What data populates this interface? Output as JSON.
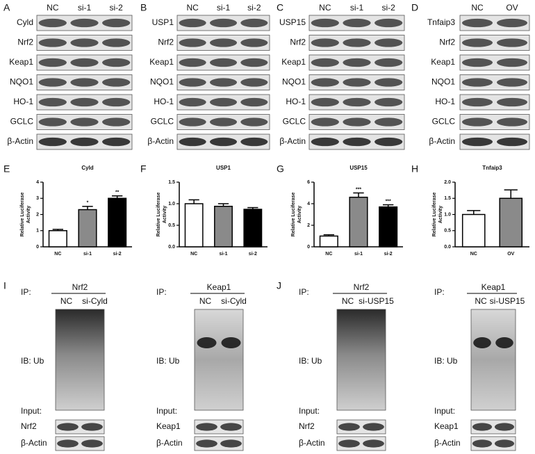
{
  "blots": [
    {
      "letter": "A",
      "columns": [
        "NC",
        "si-1",
        "si-2"
      ],
      "rows": [
        "Cyld",
        "Nrf2",
        "Keap1",
        "NQO1",
        "HO-1",
        "GCLC",
        "β-Actin"
      ]
    },
    {
      "letter": "B",
      "columns": [
        "NC",
        "si-1",
        "si-2"
      ],
      "rows": [
        "USP1",
        "Nrf2",
        "Keap1",
        "NQO1",
        "HO-1",
        "GCLC",
        "β-Actin"
      ]
    },
    {
      "letter": "C",
      "columns": [
        "NC",
        "si-1",
        "si-2"
      ],
      "rows": [
        "USP15",
        "Nrf2",
        "Keap1",
        "NQO1",
        "HO-1",
        "GCLC",
        "β-Actin"
      ]
    },
    {
      "letter": "D",
      "columns": [
        "NC",
        "OV"
      ],
      "rows": [
        "Tnfaip3",
        "Nrf2",
        "Keap1",
        "NQO1",
        "HO-1",
        "GCLC",
        "β-Actin"
      ]
    }
  ],
  "chart_data": [
    {
      "type": "bar",
      "letter": "E",
      "title": "Cyld",
      "ylabel": [
        "Relative Luciferase",
        "Activity"
      ],
      "categories": [
        "NC",
        "si-1",
        "si-2"
      ],
      "values": [
        1.0,
        2.3,
        3.0
      ],
      "errors": [
        0.08,
        0.2,
        0.15
      ],
      "colors": [
        "#ffffff",
        "#8a8a8a",
        "#000000"
      ],
      "annotations": [
        null,
        "*",
        "**"
      ],
      "ylim": [
        0,
        4
      ],
      "yticks": [
        0,
        1,
        2,
        3,
        4
      ]
    },
    {
      "type": "bar",
      "letter": "F",
      "title": "USP1",
      "ylabel": [
        "Relative Luciferase",
        "Activity"
      ],
      "categories": [
        "NC",
        "si-1",
        "si-2"
      ],
      "values": [
        1.0,
        0.94,
        0.87
      ],
      "errors": [
        0.09,
        0.06,
        0.04
      ],
      "colors": [
        "#ffffff",
        "#8a8a8a",
        "#000000"
      ],
      "ylim": [
        0,
        1.5
      ],
      "yticks": [
        {
          "value": 0,
          "label": "0.0"
        },
        {
          "value": 0.5,
          "label": "0.5"
        },
        {
          "value": 1,
          "label": "1.0"
        },
        {
          "value": 1.5,
          "label": "1.5"
        }
      ]
    },
    {
      "type": "bar",
      "letter": "G",
      "title": "USP15",
      "ylabel": [
        "Relative Luciferase",
        "Activity"
      ],
      "categories": [
        "NC",
        "si-1",
        "si-2"
      ],
      "values": [
        1.0,
        4.6,
        3.7
      ],
      "errors": [
        0.12,
        0.4,
        0.2
      ],
      "colors": [
        "#ffffff",
        "#8a8a8a",
        "#000000"
      ],
      "annotations": [
        null,
        "***",
        "***"
      ],
      "ylim": [
        0,
        6
      ],
      "yticks": [
        0,
        2,
        4,
        6
      ]
    },
    {
      "type": "bar",
      "letter": "H",
      "title": "Tnfaip3",
      "ylabel": [
        "Relative Luciferase",
        "Activity"
      ],
      "categories": [
        "NC",
        "OV"
      ],
      "values": [
        1.0,
        1.5
      ],
      "errors": [
        0.12,
        0.26
      ],
      "colors": [
        "#ffffff",
        "#8a8a8a"
      ],
      "ylim": [
        0,
        2
      ],
      "yticks": [
        {
          "value": 0,
          "label": "0.0"
        },
        {
          "value": 0.5,
          "label": "0.5"
        },
        {
          "value": 1,
          "label": "1.0"
        },
        {
          "value": 1.5,
          "label": "1.5"
        },
        {
          "value": 2,
          "label": "2.0"
        }
      ]
    }
  ],
  "ip_panels": [
    {
      "letter": "I",
      "ip_label": "IP:",
      "ip_target": "Nrf2",
      "columns": [
        "NC",
        "si-Cyld"
      ],
      "ib_label": "IB: Ub",
      "input_label": "Input:",
      "input_rows": [
        "Nrf2",
        "β-Actin"
      ]
    },
    {
      "ip_label": "IP:",
      "ip_target": "Keap1",
      "columns": [
        "NC",
        "si-Cyld"
      ],
      "ib_label": "IB: Ub",
      "input_label": "Input:",
      "input_rows": [
        "Keap1",
        "β-Actin"
      ]
    },
    {
      "letter": "J",
      "ip_label": "IP:",
      "ip_target": "Nrf2",
      "columns": [
        "NC",
        "si-USP15"
      ],
      "ib_label": "IB: Ub",
      "input_label": "Input:",
      "input_rows": [
        "Nrf2",
        "β-Actin"
      ]
    },
    {
      "ip_label": "IP:",
      "ip_target": "Keap1",
      "columns": [
        "NC",
        "si-USP15"
      ],
      "ib_label": "IB: Ub",
      "input_label": "Input:",
      "input_rows": [
        "Keap1",
        "β-Actin"
      ]
    }
  ]
}
